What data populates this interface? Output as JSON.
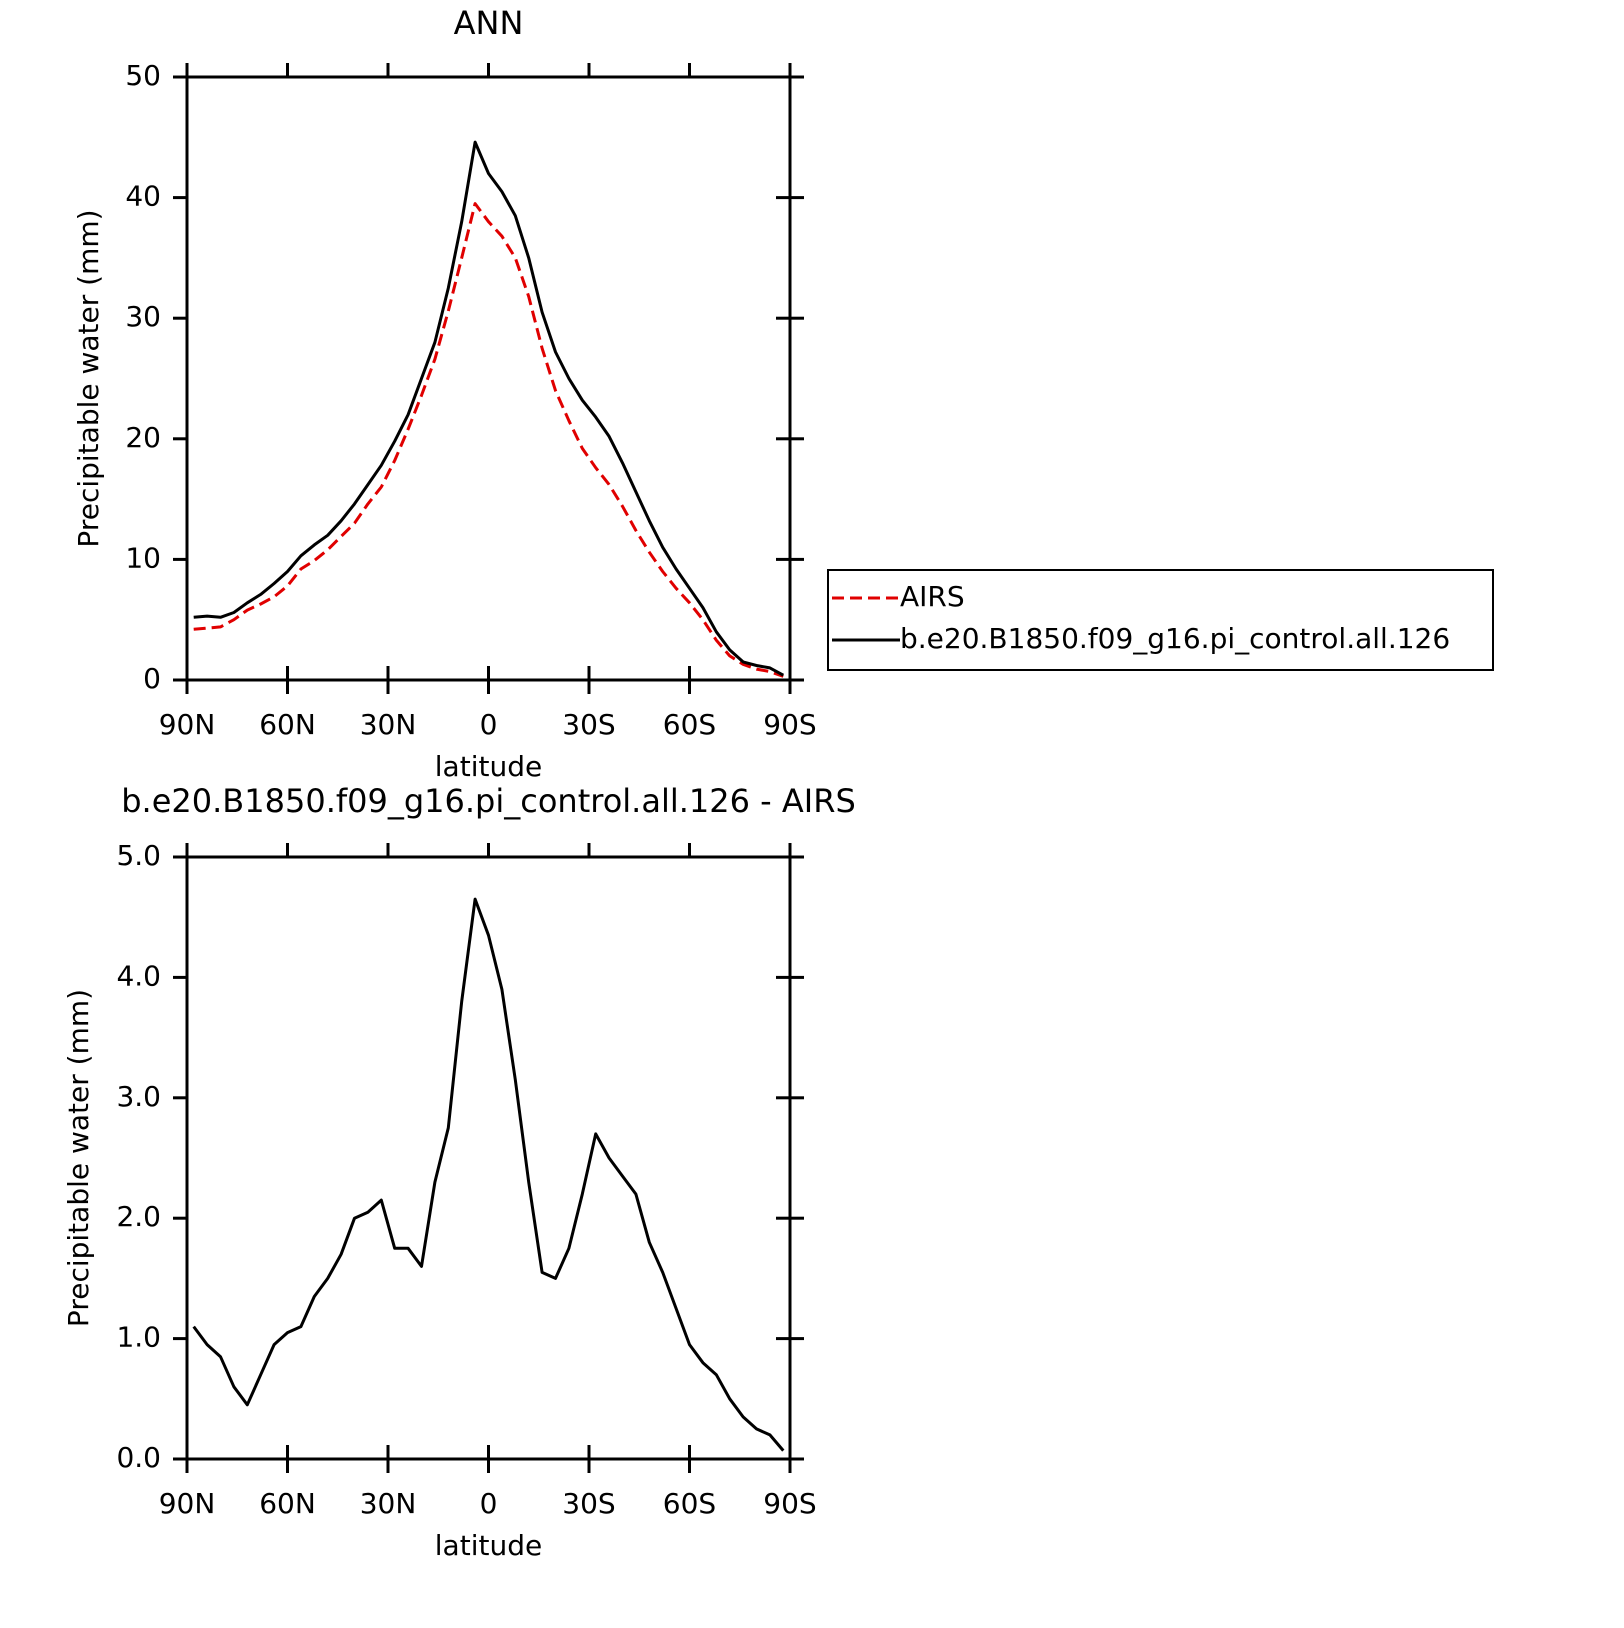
{
  "chart_data": [
    {
      "type": "line",
      "title": "ANN",
      "xlabel": "latitude",
      "ylabel": "Precipitable water (mm)",
      "x": [
        88,
        84,
        80,
        76,
        72,
        68,
        64,
        60,
        56,
        52,
        48,
        44,
        40,
        36,
        32,
        28,
        24,
        20,
        16,
        12,
        8,
        4,
        0,
        -4,
        -8,
        -12,
        -16,
        -20,
        -24,
        -28,
        -32,
        -36,
        -40,
        -44,
        -48,
        -52,
        -56,
        -60,
        -64,
        -68,
        -72,
        -76,
        -80,
        -84,
        -88
      ],
      "series": [
        {
          "name": "AIRS",
          "color": "#e00000",
          "linestyle": "dashed",
          "values": [
            4.2,
            4.3,
            4.4,
            5.0,
            5.8,
            6.3,
            6.9,
            7.8,
            9.2,
            9.9,
            10.8,
            11.9,
            13.0,
            14.6,
            16.0,
            18.2,
            20.8,
            23.6,
            26.6,
            30.6,
            35.0,
            39.5,
            38.0,
            36.8,
            35.0,
            31.8,
            27.5,
            24.0,
            21.5,
            19.2,
            17.6,
            16.2,
            14.4,
            12.4,
            10.6,
            9.0,
            7.6,
            6.4,
            5.0,
            3.3,
            2.0,
            1.3,
            0.9,
            0.7,
            0.3
          ]
        },
        {
          "name": "b.e20.B1850.f09_g16.pi_control.all.126",
          "color": "#000000",
          "linestyle": "solid",
          "values": [
            5.2,
            5.3,
            5.2,
            5.6,
            6.4,
            7.1,
            8.0,
            9.0,
            10.3,
            11.2,
            12.0,
            13.2,
            14.6,
            16.2,
            17.8,
            19.8,
            22.0,
            25.0,
            28.0,
            32.5,
            38.0,
            44.6,
            42.0,
            40.5,
            38.5,
            35.0,
            30.5,
            27.2,
            25.0,
            23.2,
            21.8,
            20.2,
            18.0,
            15.6,
            13.2,
            11.0,
            9.2,
            7.6,
            6.0,
            4.0,
            2.5,
            1.5,
            1.2,
            1.0,
            0.4
          ]
        }
      ],
      "xlim": [
        90,
        -90
      ],
      "xticks": [
        {
          "value": 90,
          "label": "90N"
        },
        {
          "value": 60,
          "label": "60N"
        },
        {
          "value": 30,
          "label": "30N"
        },
        0,
        {
          "value": -30,
          "label": "30S"
        },
        {
          "value": -60,
          "label": "60S"
        },
        {
          "value": -90,
          "label": "90S"
        }
      ],
      "ylim": [
        0,
        50
      ],
      "yticks": [
        0,
        10,
        20,
        30,
        40,
        50
      ],
      "legend": "right"
    },
    {
      "type": "line",
      "title": "b.e20.B1850.f09_g16.pi_control.all.126 - AIRS",
      "xlabel": "latitude",
      "ylabel": "Precipitable water (mm)",
      "x": [
        88,
        84,
        80,
        76,
        72,
        68,
        64,
        60,
        56,
        52,
        48,
        44,
        40,
        36,
        32,
        28,
        24,
        20,
        16,
        12,
        8,
        4,
        0,
        -4,
        -8,
        -12,
        -16,
        -20,
        -24,
        -28,
        -32,
        -36,
        -40,
        -44,
        -48,
        -52,
        -56,
        -60,
        -64,
        -68,
        -72,
        -76,
        -80,
        -84,
        -88
      ],
      "series": [
        {
          "color": "#000000",
          "linestyle": "solid",
          "values": [
            1.1,
            0.95,
            0.85,
            0.6,
            0.45,
            0.7,
            0.95,
            1.05,
            1.1,
            1.35,
            1.5,
            1.7,
            2.0,
            2.05,
            2.15,
            1.75,
            1.75,
            1.6,
            2.3,
            2.75,
            3.8,
            4.65,
            4.35,
            3.9,
            3.15,
            2.3,
            1.55,
            1.5,
            1.75,
            2.2,
            2.7,
            2.5,
            2.35,
            2.2,
            1.8,
            1.55,
            1.25,
            0.95,
            0.8,
            0.7,
            0.5,
            0.35,
            0.25,
            0.2,
            0.07
          ]
        }
      ],
      "xlim": [
        90,
        -90
      ],
      "xticks": [
        {
          "value": 90,
          "label": "90N"
        },
        {
          "value": 60,
          "label": "60N"
        },
        {
          "value": 30,
          "label": "30N"
        },
        0,
        {
          "value": -30,
          "label": "30S"
        },
        {
          "value": -60,
          "label": "60S"
        },
        {
          "value": -90,
          "label": "90S"
        }
      ],
      "ylim": [
        0,
        5
      ],
      "yticks": [
        {
          "value": 0,
          "label": "0.0"
        },
        {
          "value": 1,
          "label": "1.0"
        },
        {
          "value": 2,
          "label": "2.0"
        },
        {
          "value": 3,
          "label": "3.0"
        },
        {
          "value": 4,
          "label": "4.0"
        },
        {
          "value": 5,
          "label": "5.0"
        }
      ]
    }
  ]
}
